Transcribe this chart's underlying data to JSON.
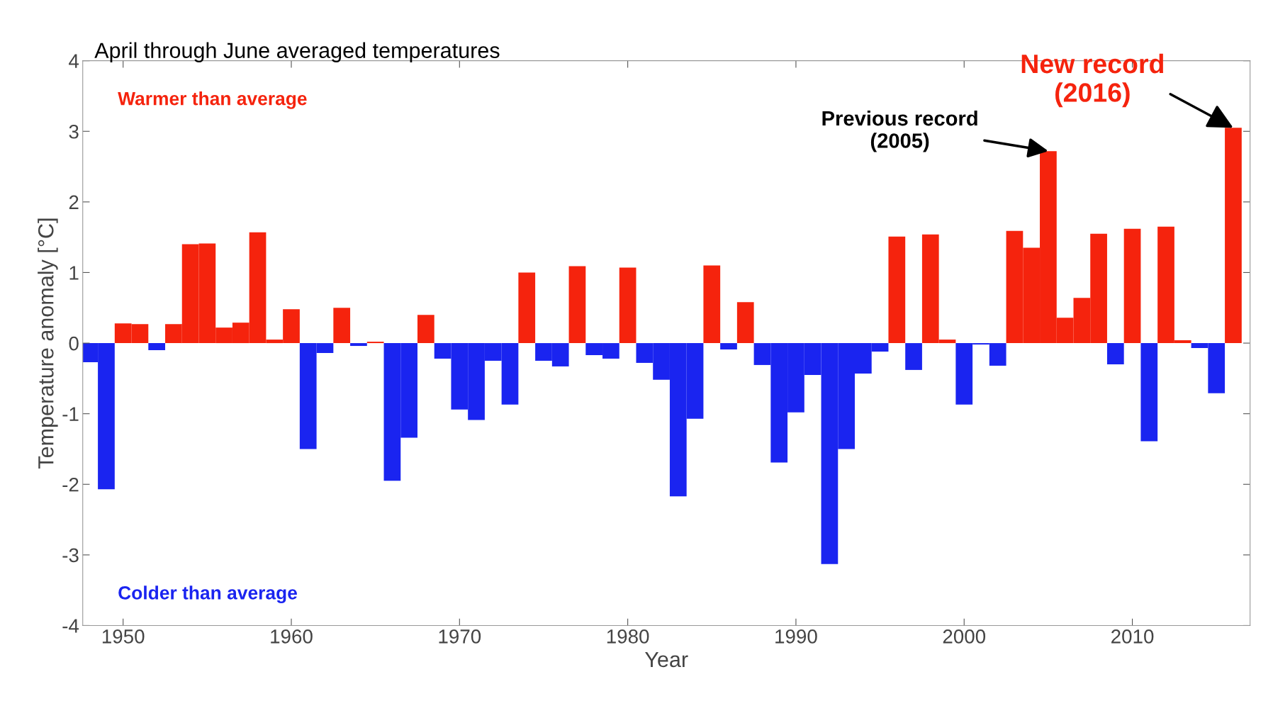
{
  "chart_data": {
    "type": "bar",
    "title": "April through June averaged temperatures",
    "xlabel": "Year",
    "ylabel": "Temperature anomaly [°C]",
    "x": [
      1948,
      1949,
      1950,
      1951,
      1952,
      1953,
      1954,
      1955,
      1956,
      1957,
      1958,
      1959,
      1960,
      1961,
      1962,
      1963,
      1964,
      1965,
      1966,
      1967,
      1968,
      1969,
      1970,
      1971,
      1972,
      1973,
      1974,
      1975,
      1976,
      1977,
      1978,
      1979,
      1980,
      1981,
      1982,
      1983,
      1984,
      1985,
      1986,
      1987,
      1988,
      1989,
      1990,
      1991,
      1992,
      1993,
      1994,
      1995,
      1996,
      1997,
      1998,
      1999,
      2000,
      2001,
      2002,
      2003,
      2004,
      2005,
      2006,
      2007,
      2008,
      2009,
      2010,
      2011,
      2012,
      2013,
      2014,
      2015,
      2016
    ],
    "values": [
      -0.27,
      -2.07,
      0.28,
      0.27,
      -0.1,
      0.27,
      1.4,
      1.41,
      0.22,
      0.29,
      1.57,
      0.05,
      0.48,
      -1.5,
      -0.14,
      0.5,
      -0.04,
      0.02,
      -1.95,
      -1.34,
      0.4,
      -0.22,
      -0.94,
      -1.09,
      -0.25,
      -0.87,
      1.0,
      -0.25,
      -0.33,
      1.09,
      -0.17,
      -0.22,
      1.07,
      -0.28,
      -0.52,
      -2.17,
      -1.07,
      1.1,
      -0.09,
      0.58,
      -0.31,
      -1.69,
      -0.98,
      -0.45,
      -3.13,
      -1.5,
      -0.43,
      -0.12,
      1.51,
      -0.38,
      1.54,
      0.05,
      -0.87,
      -0.02,
      -0.32,
      1.59,
      1.35,
      2.72,
      0.36,
      0.64,
      1.55,
      -0.3,
      1.62,
      -1.39,
      1.65,
      0.04,
      -0.07,
      -0.71,
      3.05
    ],
    "colors": [
      "#1a24f0",
      "#1a24f0",
      "#f5230d",
      "#f5230d",
      "#1a24f0",
      "#f5230d",
      "#f5230d",
      "#f5230d",
      "#f5230d",
      "#f5230d",
      "#f5230d",
      "#f5230d",
      "#f5230d",
      "#1a24f0",
      "#1a24f0",
      "#f5230d",
      "#1a24f0",
      "#f5230d",
      "#1a24f0",
      "#1a24f0",
      "#f5230d",
      "#1a24f0",
      "#1a24f0",
      "#1a24f0",
      "#1a24f0",
      "#1a24f0",
      "#f5230d",
      "#1a24f0",
      "#1a24f0",
      "#f5230d",
      "#1a24f0",
      "#1a24f0",
      "#f5230d",
      "#1a24f0",
      "#1a24f0",
      "#1a24f0",
      "#1a24f0",
      "#f5230d",
      "#1a24f0",
      "#f5230d",
      "#1a24f0",
      "#1a24f0",
      "#1a24f0",
      "#1a24f0",
      "#1a24f0",
      "#1a24f0",
      "#1a24f0",
      "#1a24f0",
      "#f5230d",
      "#1a24f0",
      "#f5230d",
      "#f5230d",
      "#1a24f0",
      "#1a24f0",
      "#1a24f0",
      "#f5230d",
      "#f5230d",
      "#f5230d",
      "#f5230d",
      "#f5230d",
      "#f5230d",
      "#1a24f0",
      "#f5230d",
      "#1a24f0",
      "#f5230d",
      "#f5230d",
      "#1a24f0",
      "#1a24f0",
      "#f5230d"
    ],
    "xlim": [
      1947.6,
      2017
    ],
    "xticks": [
      1950,
      1960,
      1970,
      1980,
      1990,
      2000,
      2010
    ],
    "ylim": [
      -4,
      4
    ],
    "yticks": [
      -4,
      -3,
      -2,
      -1,
      0,
      1,
      2,
      3,
      4
    ],
    "grid": false,
    "legend": false,
    "annotations": [
      "Warmer than average",
      "Colder than average",
      {
        "text": "Previous record\n(2005)",
        "x": 2005,
        "y": 2.72
      },
      {
        "text": "New record\n(2016)",
        "x": 2016,
        "y": 3.05
      }
    ]
  }
}
